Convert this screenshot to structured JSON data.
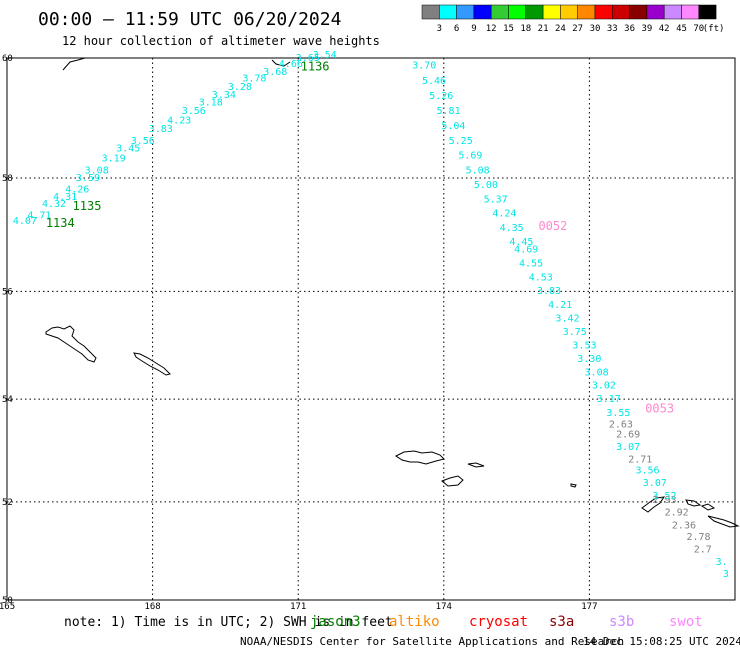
{
  "header": {
    "title": "00:00 – 11:59 UTC 06/20/2024",
    "subtitle": "12 hour collection of altimeter wave heights"
  },
  "colorbar": {
    "unit": "(ft)",
    "ticks": [
      "3",
      "6",
      "9",
      "12",
      "15",
      "18",
      "21",
      "24",
      "27",
      "30",
      "33",
      "36",
      "39",
      "42",
      "45",
      "70"
    ],
    "colors": [
      "#808080",
      "#00ffff",
      "#3399ff",
      "#0000ff",
      "#33cc33",
      "#00ff00",
      "#009900",
      "#ffff00",
      "#ffcc00",
      "#ff8800",
      "#ff0000",
      "#cc0000",
      "#880000",
      "#9900cc",
      "#cc88ff",
      "#ff88ff",
      "#000000"
    ]
  },
  "map": {
    "lat_range": [
      50,
      60
    ],
    "lon_range": [
      165,
      180
    ],
    "lat_labels": [
      "60",
      "58",
      "56",
      "54",
      "52",
      "50"
    ],
    "lon_labels": [
      "165",
      "168",
      "171",
      "174",
      "177"
    ],
    "pass_labels": [
      {
        "text": "1136",
        "color": "#008000",
        "lon": 171.05,
        "lat": 59.8
      },
      {
        "text": "1135",
        "color": "#008000",
        "lon": 166.35,
        "lat": 57.45
      },
      {
        "text": "1134",
        "color": "#008000",
        "lon": 165.8,
        "lat": 57.15
      },
      {
        "text": "0052",
        "color": "#ff88cc",
        "lon": 175.95,
        "lat": 57.1
      },
      {
        "text": "0053",
        "color": "#ff88cc",
        "lon": 178.15,
        "lat": 53.75
      }
    ],
    "tracks": [
      {
        "name": "track_1134",
        "color": "#00e5e5",
        "values": [
          {
            "v": "4.07",
            "lon": 165.12,
            "lat": 57.2
          },
          {
            "v": "4.71",
            "lon": 165.42,
            "lat": 57.3
          },
          {
            "v": "4.32",
            "lon": 165.72,
            "lat": 57.5
          },
          {
            "v": "4.31",
            "lon": 165.95,
            "lat": 57.62
          },
          {
            "v": "4.26",
            "lon": 166.2,
            "lat": 57.75
          },
          {
            "v": "3.59",
            "lon": 166.42,
            "lat": 57.95
          },
          {
            "v": "3.08",
            "lon": 166.6,
            "lat": 58.08
          },
          {
            "v": "3.19",
            "lon": 166.95,
            "lat": 58.28
          },
          {
            "v": "3.45",
            "lon": 167.25,
            "lat": 58.45
          },
          {
            "v": "3.56",
            "lon": 167.55,
            "lat": 58.58
          },
          {
            "v": "3.83",
            "lon": 167.92,
            "lat": 58.78
          },
          {
            "v": "4.23",
            "lon": 168.3,
            "lat": 58.92
          },
          {
            "v": "3.56",
            "lon": 168.6,
            "lat": 59.08
          },
          {
            "v": "3.18",
            "lon": 168.95,
            "lat": 59.22
          },
          {
            "v": "3.34",
            "lon": 169.22,
            "lat": 59.35
          },
          {
            "v": "3.28",
            "lon": 169.55,
            "lat": 59.48
          },
          {
            "v": "3.78",
            "lon": 169.85,
            "lat": 59.62
          },
          {
            "v": "3.68",
            "lon": 170.28,
            "lat": 59.72
          },
          {
            "v": "4.66",
            "lon": 170.6,
            "lat": 59.85
          },
          {
            "v": "3.65",
            "lon": 170.95,
            "lat": 59.95
          },
          {
            "v": "3.54",
            "lon": 171.3,
            "lat": 60.0
          }
        ]
      },
      {
        "name": "track_0052",
        "color": "#00e5e5",
        "values": [
          {
            "v": "3.70",
            "lon": 173.35,
            "lat": 59.83
          },
          {
            "v": "5.46",
            "lon": 173.55,
            "lat": 59.58
          },
          {
            "v": "5.26",
            "lon": 173.7,
            "lat": 59.33
          },
          {
            "v": "5.81",
            "lon": 173.85,
            "lat": 59.08
          },
          {
            "v": "5.04",
            "lon": 173.95,
            "lat": 58.83
          },
          {
            "v": "5.25",
            "lon": 174.1,
            "lat": 58.58
          },
          {
            "v": "5.69",
            "lon": 174.3,
            "lat": 58.33
          },
          {
            "v": "5.08",
            "lon": 174.45,
            "lat": 58.08
          },
          {
            "v": "5.00",
            "lon": 174.62,
            "lat": 57.83
          },
          {
            "v": "5.37",
            "lon": 174.82,
            "lat": 57.58
          },
          {
            "v": "4.24",
            "lon": 175.0,
            "lat": 57.33
          },
          {
            "v": "4.35",
            "lon": 175.15,
            "lat": 57.08
          },
          {
            "v": "4.45",
            "lon": 175.35,
            "lat": 56.83
          },
          {
            "v": "4.69",
            "lon": 175.45,
            "lat": 56.7
          },
          {
            "v": "4.55",
            "lon": 175.55,
            "lat": 56.45
          },
          {
            "v": "4.53",
            "lon": 175.75,
            "lat": 56.2
          },
          {
            "v": "3.83",
            "lon": 175.92,
            "lat": 55.95
          },
          {
            "v": "4.21",
            "lon": 176.15,
            "lat": 55.7
          },
          {
            "v": "3.42",
            "lon": 176.3,
            "lat": 55.45
          },
          {
            "v": "3.75",
            "lon": 176.45,
            "lat": 55.2
          },
          {
            "v": "3.53",
            "lon": 176.65,
            "lat": 54.95
          },
          {
            "v": "3.30",
            "lon": 176.75,
            "lat": 54.7
          },
          {
            "v": "3.08",
            "lon": 176.9,
            "lat": 54.45
          },
          {
            "v": "3.02",
            "lon": 177.05,
            "lat": 54.2
          },
          {
            "v": "3.17",
            "lon": 177.15,
            "lat": 53.95
          },
          {
            "v": "3.55",
            "lon": 177.35,
            "lat": 53.68
          }
        ]
      },
      {
        "name": "track_0053",
        "color": "#808080",
        "values": [
          {
            "v": "2.63",
            "lon": 177.4,
            "lat": 53.46
          },
          {
            "v": "2.69",
            "lon": 177.55,
            "lat": 53.26
          },
          {
            "v": "2.71",
            "lon": 177.8,
            "lat": 52.78
          },
          {
            "v": "2.93",
            "lon": 178.3,
            "lat": 51.98
          },
          {
            "v": "2.92",
            "lon": 178.55,
            "lat": 51.73
          },
          {
            "v": "2.36",
            "lon": 178.7,
            "lat": 51.47
          },
          {
            "v": "2.78",
            "lon": 179.0,
            "lat": 51.23
          },
          {
            "v": "2.7",
            "lon": 179.15,
            "lat": 50.98
          }
        ]
      },
      {
        "name": "track_0053_cyan",
        "color": "#00e5e5",
        "values": [
          {
            "v": "3.07",
            "lon": 177.55,
            "lat": 53.02
          },
          {
            "v": "3.56",
            "lon": 177.95,
            "lat": 52.56
          },
          {
            "v": "3.07",
            "lon": 178.1,
            "lat": 52.31
          },
          {
            "v": "3.52",
            "lon": 178.3,
            "lat": 52.06
          },
          {
            "v": "3.",
            "lon": 179.6,
            "lat": 50.72
          },
          {
            "v": "3",
            "lon": 179.75,
            "lat": 50.48
          }
        ]
      }
    ]
  },
  "legend": {
    "note": "note: 1) Time is in UTC; 2) SWH is in feet",
    "satellites": [
      {
        "name": "jason3",
        "color": "#008000"
      },
      {
        "name": "altiko",
        "color": "#ff8800"
      },
      {
        "name": "cryosat",
        "color": "#ff0000"
      },
      {
        "name": "s3a",
        "color": "#880000"
      },
      {
        "name": "s3b",
        "color": "#cc88ff"
      },
      {
        "name": "swot",
        "color": "#ff88ff"
      }
    ]
  },
  "footer": {
    "credit": "NOAA/NESDIS Center for Satellite Applications and Research",
    "timestamp": "14 Dec 15:08:25 UTC 2024"
  }
}
